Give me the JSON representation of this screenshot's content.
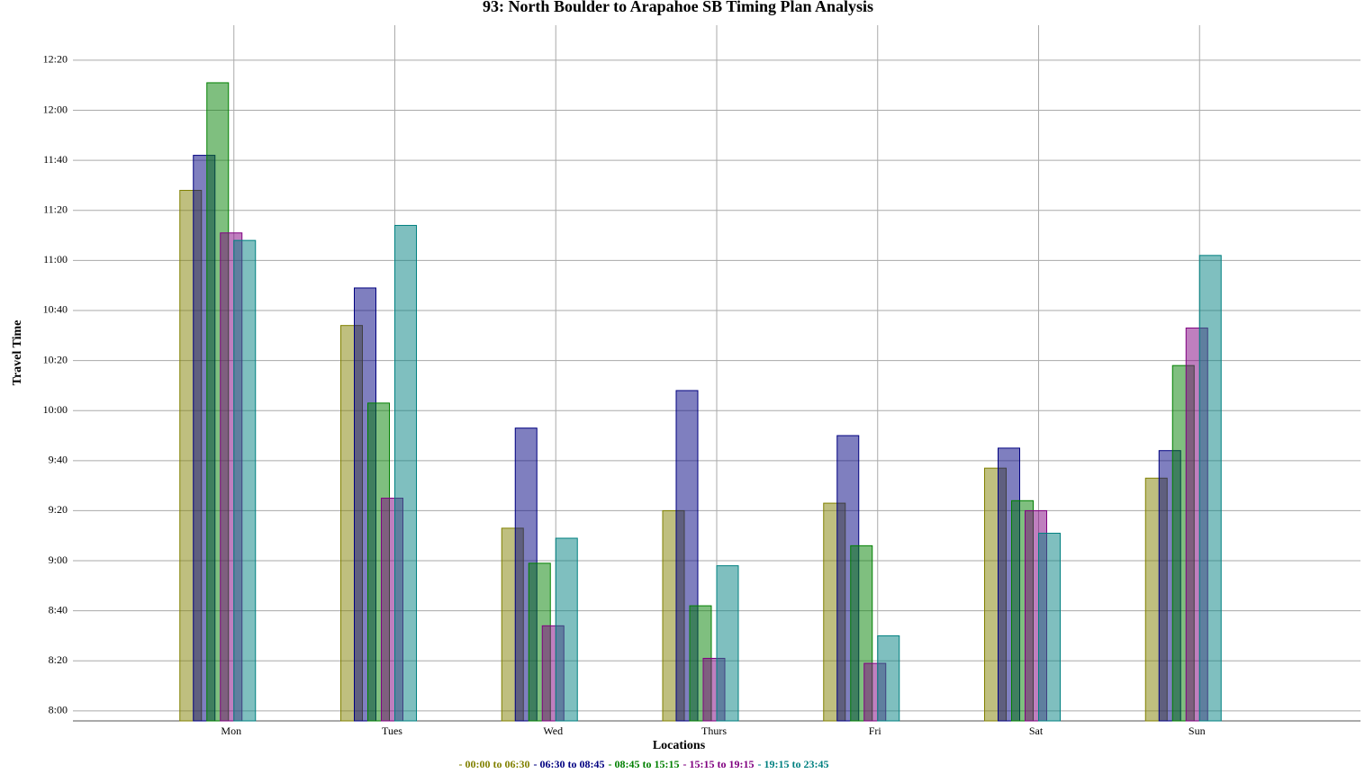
{
  "chart_data": {
    "type": "bar",
    "title": "93: North Boulder to Arapahoe SB Timing Plan Analysis",
    "x_label": "Locations",
    "y_label": "Travel Time",
    "categories": [
      "Mon",
      "Tues",
      "Wed",
      "Thurs",
      "Fri",
      "Sat",
      "Sun"
    ],
    "series": [
      {
        "name": "00:00 to 06:30",
        "color": "#808000",
        "values": [
          688,
          634,
          553,
          560,
          563,
          577,
          573
        ]
      },
      {
        "name": "06:30 to 08:45",
        "color": "#000080",
        "values": [
          702,
          649,
          593,
          608,
          590,
          585,
          584
        ]
      },
      {
        "name": "08:45 to 15:15",
        "color": "#008000",
        "values": [
          731,
          603,
          539,
          522,
          546,
          564,
          618
        ]
      },
      {
        "name": "15:15 to 19:15",
        "color": "#800080",
        "values": [
          671,
          565,
          514,
          501,
          499,
          560,
          633
        ]
      },
      {
        "name": "19:15 to 23:45",
        "color": "#008080",
        "values": [
          668,
          674,
          549,
          538,
          510,
          551,
          662
        ]
      }
    ],
    "ylim": [
      476,
      754
    ],
    "yticks": [
      {
        "value": 480,
        "label": "8:00"
      },
      {
        "value": 500,
        "label": "8:20"
      },
      {
        "value": 520,
        "label": "8:40"
      },
      {
        "value": 540,
        "label": "9:00"
      },
      {
        "value": 560,
        "label": "9:20"
      },
      {
        "value": 580,
        "label": "9:40"
      },
      {
        "value": 600,
        "label": "10:00"
      },
      {
        "value": 620,
        "label": "10:20"
      },
      {
        "value": 640,
        "label": "10:40"
      },
      {
        "value": 660,
        "label": "11:00"
      },
      {
        "value": 680,
        "label": "11:20"
      },
      {
        "value": 700,
        "label": "11:40"
      },
      {
        "value": 720,
        "label": "12:00"
      },
      {
        "value": 740,
        "label": "12:20"
      }
    ],
    "grid": true
  }
}
